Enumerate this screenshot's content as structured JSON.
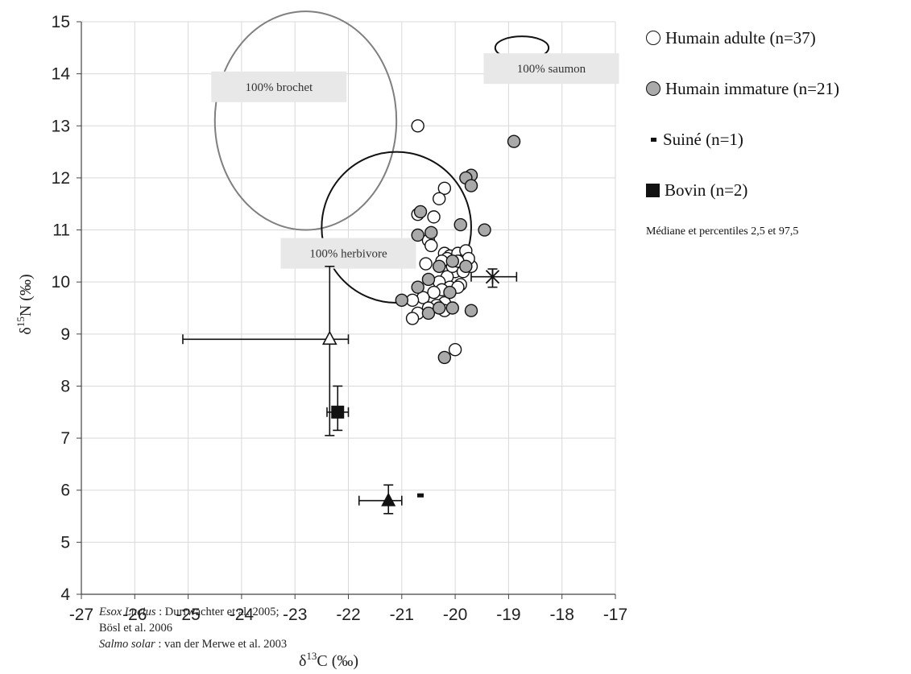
{
  "chart_data": {
    "type": "scatter",
    "xlabel": "δ13C (‰)",
    "ylabel": "δ15N (‰)",
    "xlim": [
      -27,
      -17
    ],
    "ylim": [
      4,
      15
    ],
    "x_ticks": [
      -27,
      -26,
      -25,
      -24,
      -23,
      -22,
      -21,
      -20,
      -19,
      -18,
      -17
    ],
    "y_ticks": [
      4,
      5,
      6,
      7,
      8,
      9,
      10,
      11,
      12,
      13,
      14,
      15
    ],
    "grid": true,
    "series": [
      {
        "name": "Humain adulte (n=37)",
        "marker": "open-circle",
        "points": [
          [
            -20.7,
            13.0
          ],
          [
            -20.2,
            11.8
          ],
          [
            -20.3,
            11.6
          ],
          [
            -20.7,
            11.3
          ],
          [
            -20.4,
            11.25
          ],
          [
            -20.5,
            10.8
          ],
          [
            -20.2,
            10.55
          ],
          [
            -20.1,
            10.5
          ],
          [
            -19.95,
            10.55
          ],
          [
            -19.8,
            10.6
          ],
          [
            -19.9,
            10.4
          ],
          [
            -19.7,
            10.3
          ],
          [
            -19.75,
            10.45
          ],
          [
            -20.0,
            10.2
          ],
          [
            -20.15,
            10.1
          ],
          [
            -20.3,
            10.0
          ],
          [
            -19.9,
            9.95
          ],
          [
            -20.1,
            9.9
          ],
          [
            -20.25,
            9.85
          ],
          [
            -20.4,
            9.8
          ],
          [
            -20.6,
            9.7
          ],
          [
            -20.8,
            9.65
          ],
          [
            -20.2,
            9.6
          ],
          [
            -20.35,
            9.55
          ],
          [
            -20.5,
            9.5
          ],
          [
            -20.7,
            9.4
          ],
          [
            -20.8,
            9.3
          ],
          [
            -20.2,
            9.45
          ],
          [
            -19.95,
            9.9
          ],
          [
            -20.05,
            10.3
          ],
          [
            -20.45,
            10.7
          ],
          [
            -20.0,
            8.7
          ],
          [
            -20.15,
            10.45
          ],
          [
            -19.85,
            10.2
          ],
          [
            -20.25,
            10.4
          ],
          [
            -20.55,
            10.35
          ],
          [
            -19.95,
            10.4
          ]
        ]
      },
      {
        "name": "Humain immature (n=21)",
        "marker": "gray-circle",
        "points": [
          [
            -18.9,
            12.7
          ],
          [
            -19.7,
            12.05
          ],
          [
            -19.8,
            12.0
          ],
          [
            -19.7,
            11.85
          ],
          [
            -20.65,
            11.35
          ],
          [
            -19.9,
            11.1
          ],
          [
            -19.45,
            11.0
          ],
          [
            -20.45,
            10.95
          ],
          [
            -20.7,
            10.9
          ],
          [
            -20.05,
            10.4
          ],
          [
            -20.3,
            10.3
          ],
          [
            -19.8,
            10.3
          ],
          [
            -20.5,
            10.05
          ],
          [
            -20.7,
            9.9
          ],
          [
            -21.0,
            9.65
          ],
          [
            -20.5,
            9.4
          ],
          [
            -20.1,
            9.8
          ],
          [
            -20.05,
            9.5
          ],
          [
            -19.7,
            9.45
          ],
          [
            -20.2,
            8.55
          ],
          [
            -20.3,
            9.5
          ]
        ]
      },
      {
        "name": "Suiné (n=1)",
        "marker": "dash",
        "points": [
          [
            -20.65,
            5.9
          ]
        ]
      },
      {
        "name": "Bovin (n=2)",
        "marker": "square",
        "points": [
          [
            -22.2,
            7.5
          ]
        ]
      }
    ],
    "error_markers": [
      {
        "marker": "open-triangle",
        "x": -22.35,
        "y": 8.9,
        "x_range": [
          -25.1,
          -22.0
        ],
        "y_range": [
          7.05,
          10.3
        ]
      },
      {
        "marker": "filled-square",
        "x": -22.2,
        "y": 7.5,
        "x_range": [
          -22.4,
          -22.0
        ],
        "y_range": [
          7.15,
          8.0
        ]
      },
      {
        "marker": "filled-triangle",
        "x": -21.25,
        "y": 5.8,
        "x_range": [
          -21.8,
          -21.0
        ],
        "y_range": [
          5.55,
          6.1
        ]
      },
      {
        "marker": "asterisk",
        "x": -19.3,
        "y": 10.1,
        "x_range": [
          -19.7,
          -18.85
        ],
        "y_range": [
          9.9,
          10.25
        ]
      }
    ],
    "zones": [
      {
        "label": "100% brochet",
        "cx": -22.8,
        "cy": 13.1,
        "rx": 1.7,
        "ry": 2.1,
        "color": "#7f7f7f",
        "label_x": -23.3,
        "label_y": 13.75
      },
      {
        "label": "100% herbivore",
        "cx": -21.1,
        "cy": 11.05,
        "rx": 1.4,
        "ry": 1.45,
        "color": "#111111",
        "label_x": -22.0,
        "label_y": 10.55
      },
      {
        "label": "100% saumon",
        "cx": -18.75,
        "cy": 14.5,
        "rx": 0.5,
        "ry": 0.22,
        "color": "#111111",
        "label_x": -18.2,
        "label_y": 14.1
      }
    ],
    "legend_position": "right",
    "note": "Médiane et percentiles  2,5 et 97,5"
  },
  "references": {
    "esox_name": "Esox Lucius",
    "esox_ref": " : Durrwachter et al. 2005;",
    "esox_ref2": "Bösl et al. 2006",
    "salmo_name": "Salmo solar",
    "salmo_ref": "  : van der Merwe et al. 2003"
  }
}
